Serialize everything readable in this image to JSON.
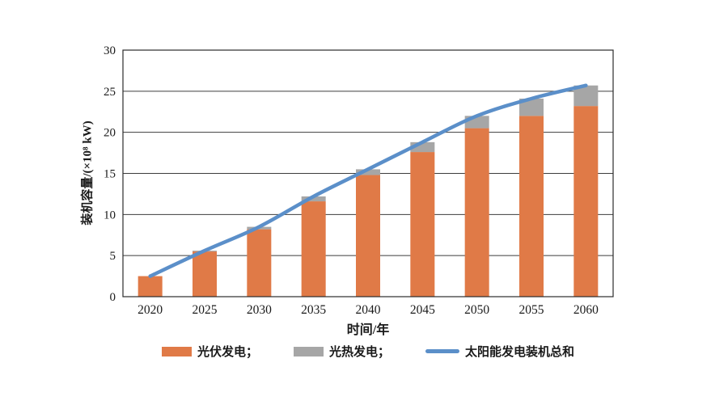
{
  "chart_data": {
    "type": "bar",
    "subtype": "stacked-bars-with-line-overlay",
    "title": "",
    "xlabel": "时间/年",
    "ylabel": "装机容量/(×10⁸ kW)",
    "categories": [
      "2020",
      "2025",
      "2030",
      "2035",
      "2040",
      "2045",
      "2050",
      "2055",
      "2060"
    ],
    "series": [
      {
        "name": "光伏发电",
        "type": "bar",
        "color": "#E07A47",
        "values": [
          2.5,
          5.5,
          8.2,
          11.6,
          14.8,
          17.6,
          20.5,
          22.0,
          23.2
        ]
      },
      {
        "name": "光热发电",
        "type": "bar",
        "color": "#A6A6A6",
        "values": [
          0,
          0.1,
          0.3,
          0.6,
          0.7,
          1.2,
          1.5,
          2.1,
          2.5
        ]
      },
      {
        "name": "太阳能发电装机总和",
        "type": "line",
        "color": "#5B8FC9",
        "values": [
          2.5,
          5.6,
          8.5,
          12.2,
          15.5,
          18.8,
          22.0,
          24.1,
          25.7
        ]
      }
    ],
    "ylim": [
      0,
      30
    ],
    "ytick_step": 5,
    "yticks": [
      0,
      5,
      10,
      15,
      20,
      25,
      30
    ],
    "grid": true,
    "legend_position": "bottom",
    "legend_labels": [
      "光伏发电；",
      "光热发电；",
      "太阳能发电装机总和"
    ]
  },
  "style": {
    "axis_color": "#2b2b2b",
    "grid_color": "#3c3c3c",
    "text_color": "#1a1a1a",
    "background": "#ffffff"
  }
}
